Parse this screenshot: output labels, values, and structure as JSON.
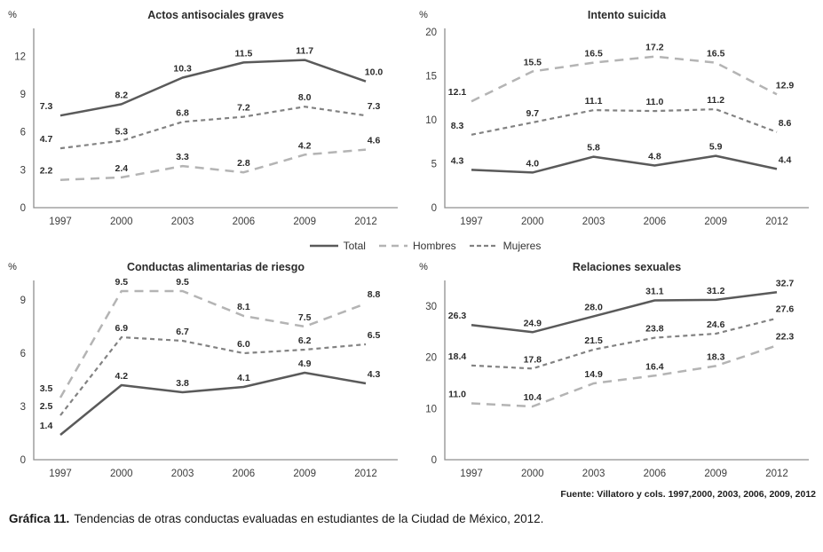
{
  "figure": {
    "source": "Fuente: Villatoro y cols. 1997,2000, 2003, 2006, 2009, 2012",
    "caption_label": "Gráfica 11.",
    "caption_text": "Tendencias de otras conductas evaluadas en estudiantes de la Ciudad de México, 2012."
  },
  "legend": {
    "position": "center-between-rows",
    "items": [
      {
        "label": "Total",
        "style": "solid",
        "color": "#5a5a5a"
      },
      {
        "label": "Hombres",
        "style": "long-dash",
        "color": "#b4b4b4"
      },
      {
        "label": "Mujeres",
        "style": "short-dash",
        "color": "#828282"
      }
    ]
  },
  "chart_data": [
    {
      "type": "line",
      "title": "Actos antisociales graves",
      "ylabel": "%",
      "xlabel": "",
      "grid": false,
      "x": [
        "1997",
        "2000",
        "2003",
        "2006",
        "2009",
        "2012"
      ],
      "yticks": [
        0,
        3,
        6,
        9,
        12
      ],
      "ylim": [
        0,
        14.2
      ],
      "series": [
        {
          "name": "Total",
          "style": "solid",
          "values": [
            7.3,
            8.2,
            10.3,
            11.5,
            11.7,
            10.0
          ]
        },
        {
          "name": "Mujeres",
          "style": "short-dash",
          "values": [
            4.7,
            5.3,
            6.8,
            7.2,
            8.0,
            7.3
          ]
        },
        {
          "name": "Hombres",
          "style": "long-dash",
          "values": [
            2.2,
            2.4,
            3.3,
            2.8,
            4.2,
            4.6
          ]
        }
      ]
    },
    {
      "type": "line",
      "title": "Intento suicida",
      "ylabel": "%",
      "xlabel": "",
      "grid": false,
      "x": [
        "1997",
        "2000",
        "2003",
        "2006",
        "2009",
        "2012"
      ],
      "yticks": [
        0,
        5,
        10,
        15,
        20
      ],
      "ylim": [
        0,
        20.4
      ],
      "series": [
        {
          "name": "Hombres",
          "style": "long-dash",
          "values": [
            12.1,
            15.5,
            16.5,
            17.2,
            16.5,
            12.9
          ]
        },
        {
          "name": "Mujeres",
          "style": "short-dash",
          "values": [
            8.3,
            9.7,
            11.1,
            11.0,
            11.2,
            8.6
          ]
        },
        {
          "name": "Total",
          "style": "solid",
          "values": [
            4.3,
            4.0,
            5.8,
            4.8,
            5.9,
            4.4
          ]
        }
      ]
    },
    {
      "type": "line",
      "title": "Conductas alimentarias de riesgo",
      "ylabel": "%",
      "xlabel": "",
      "grid": false,
      "x": [
        "1997",
        "2000",
        "2003",
        "2006",
        "2009",
        "2012"
      ],
      "yticks": [
        0,
        3,
        6,
        9
      ],
      "ylim": [
        0,
        10.1
      ],
      "series": [
        {
          "name": "Hombres",
          "style": "long-dash",
          "values": [
            3.5,
            9.5,
            9.5,
            8.1,
            7.5,
            8.8
          ]
        },
        {
          "name": "Mujeres",
          "style": "short-dash",
          "values": [
            2.5,
            6.9,
            6.7,
            6.0,
            6.2,
            6.5
          ]
        },
        {
          "name": "Total",
          "style": "solid",
          "values": [
            1.4,
            4.2,
            3.8,
            4.1,
            4.9,
            4.3
          ]
        }
      ]
    },
    {
      "type": "line",
      "title": "Relaciones sexuales",
      "ylabel": "%",
      "xlabel": "",
      "grid": false,
      "x": [
        "1997",
        "2000",
        "2003",
        "2006",
        "2009",
        "2012"
      ],
      "yticks": [
        0,
        10,
        20,
        30
      ],
      "ylim": [
        0,
        35
      ],
      "series": [
        {
          "name": "Total",
          "style": "solid",
          "values": [
            26.3,
            24.9,
            28.0,
            31.1,
            31.2,
            32.7
          ]
        },
        {
          "name": "Mujeres",
          "style": "short-dash",
          "values": [
            18.4,
            17.8,
            21.5,
            23.8,
            24.6,
            27.6
          ]
        },
        {
          "name": "Hombres",
          "style": "long-dash",
          "values": [
            11.0,
            10.4,
            14.9,
            16.4,
            18.3,
            22.3
          ]
        }
      ]
    }
  ]
}
